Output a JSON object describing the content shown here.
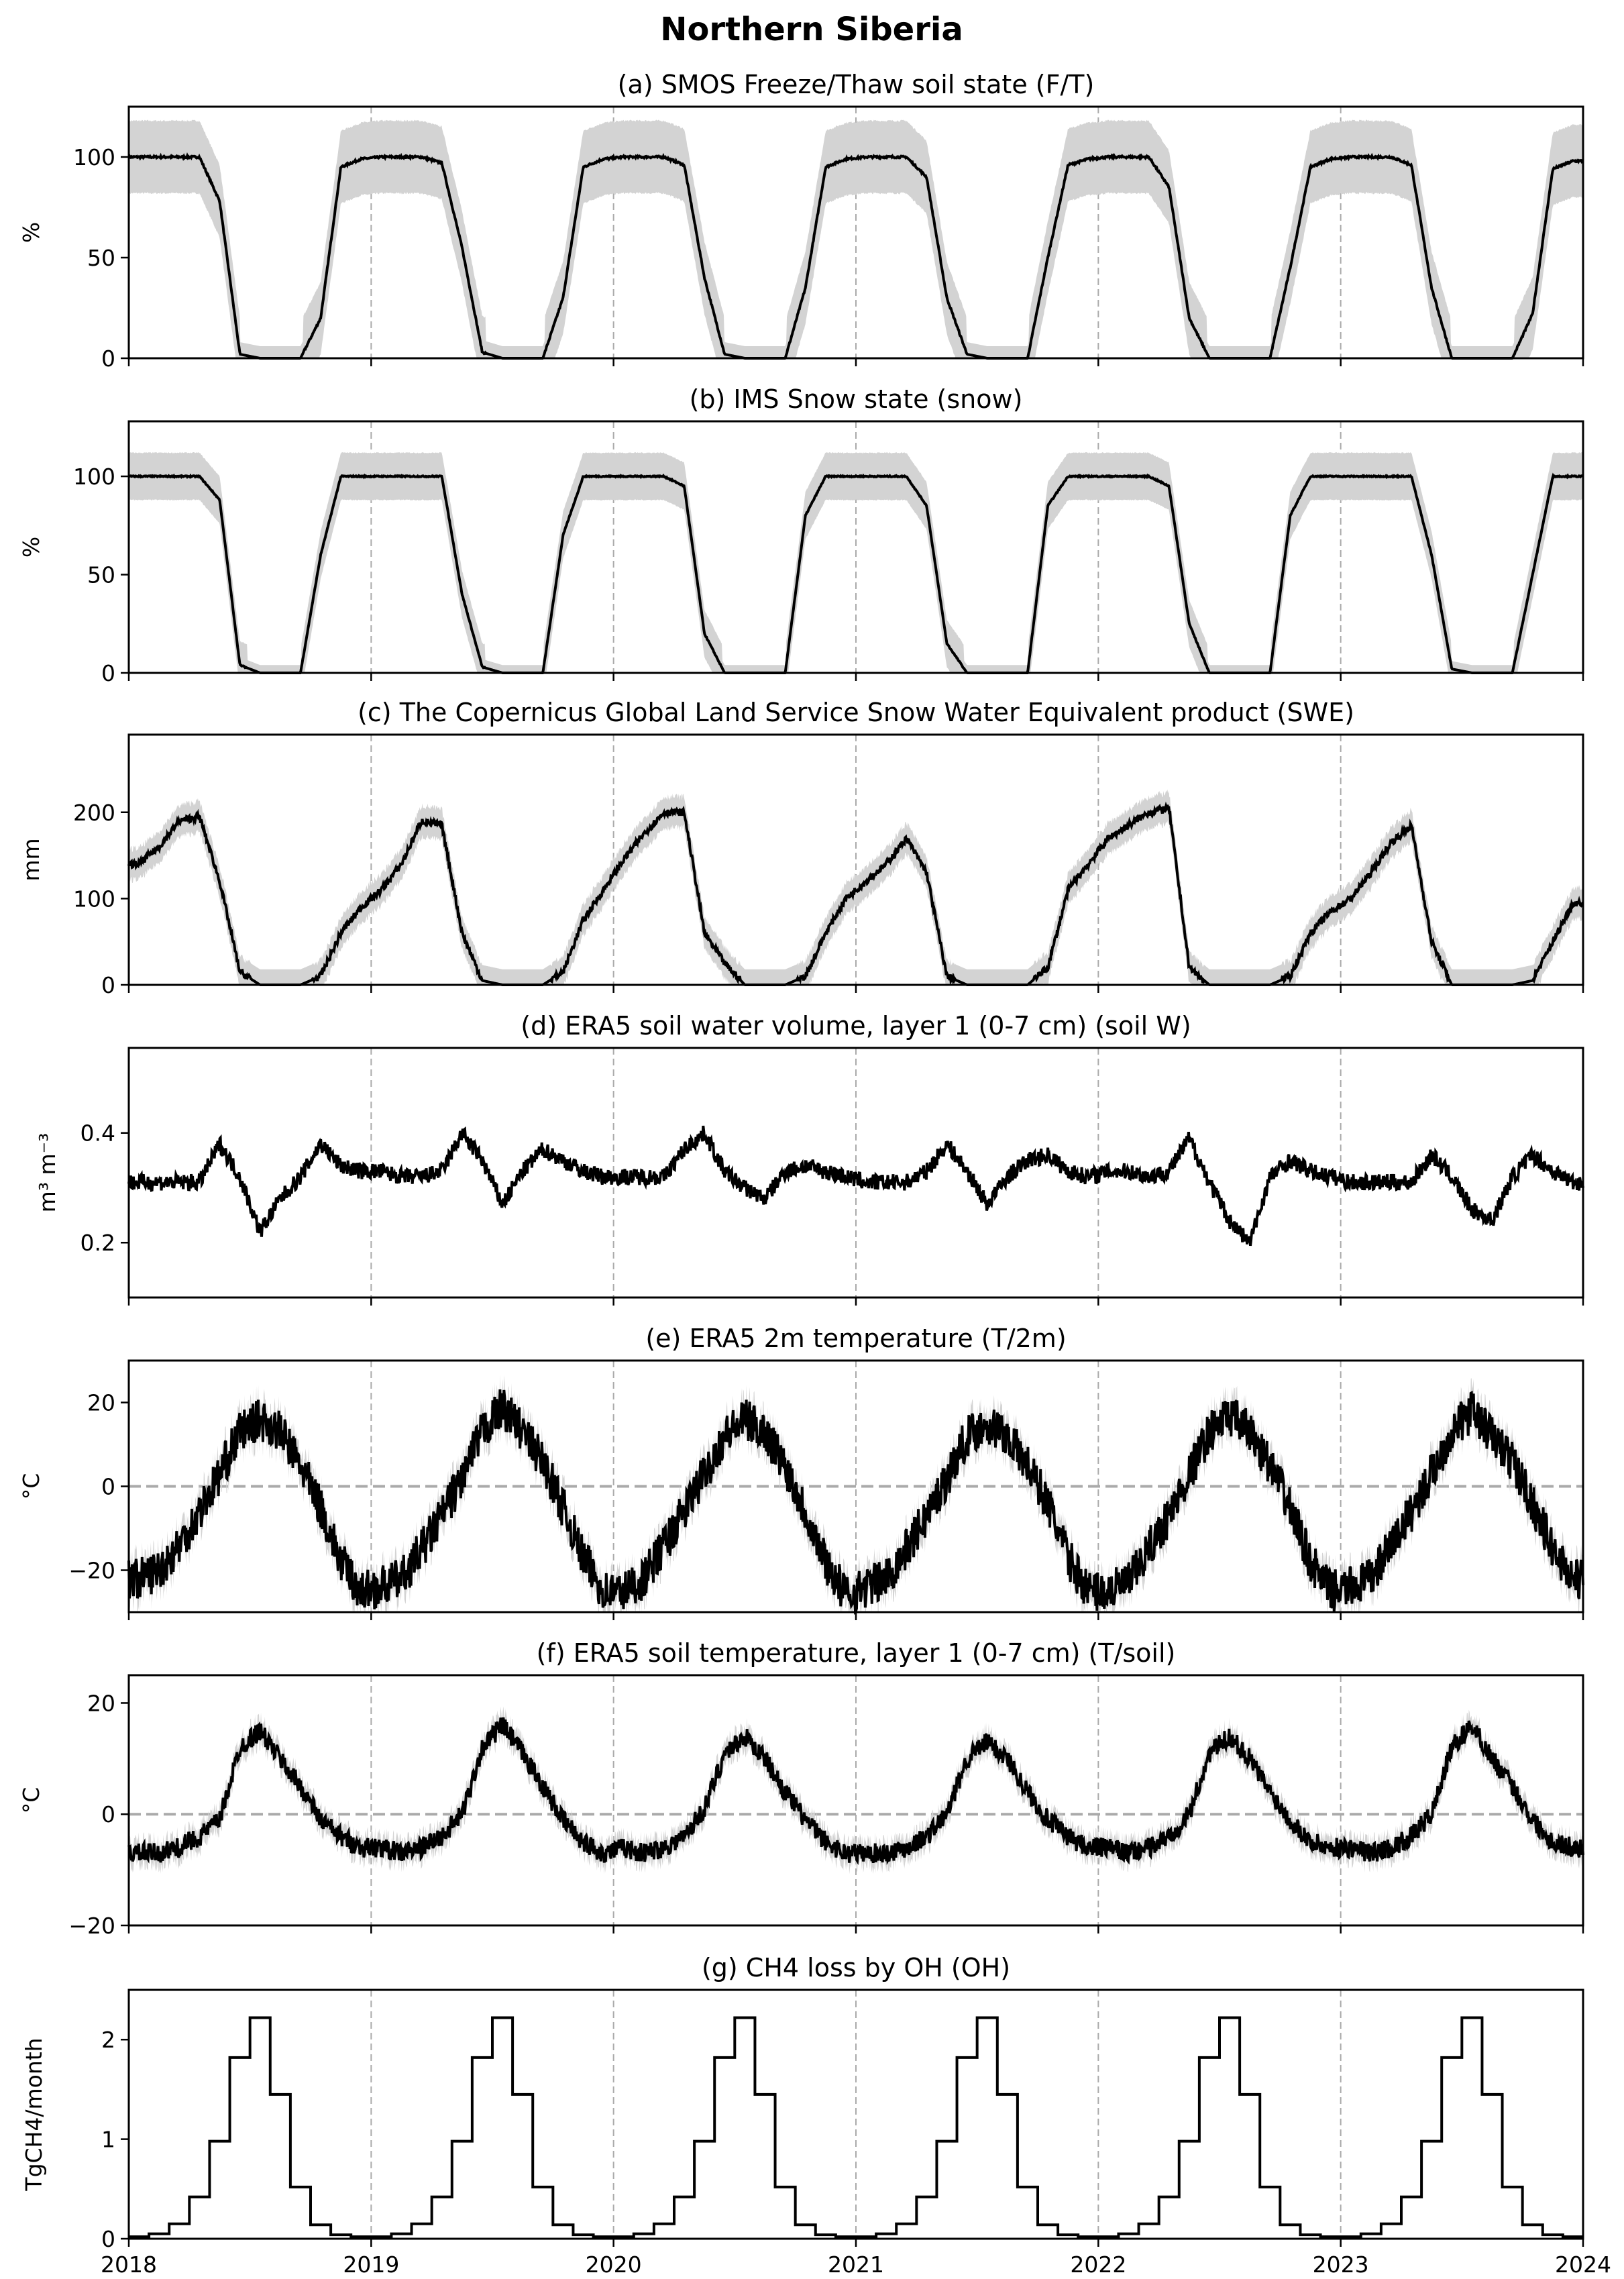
{
  "chart_data": {
    "title": "Northern Siberia",
    "x_range": [
      "2018-01-01",
      "2024-01-01"
    ],
    "x_tick_labels": [
      "2018",
      "2019",
      "2020",
      "2021",
      "2022",
      "2023",
      "2024"
    ],
    "year_gridlines": "dashed-gray",
    "sampling": "monthly",
    "panels": [
      {
        "type": "line",
        "title": "(a) SMOS Freeze/Thaw soil state (F/T)",
        "ylabel": "%",
        "ylim": [
          0,
          125
        ],
        "yticks": [
          0,
          50,
          100
        ],
        "band": true,
        "values": [
          100,
          100,
          100,
          100,
          78,
          2,
          0,
          0,
          0,
          20,
          95,
          99,
          100,
          100,
          100,
          97,
          55,
          3,
          0,
          0,
          0,
          30,
          95,
          99,
          100,
          100,
          100,
          96,
          40,
          2,
          0,
          0,
          0,
          35,
          95,
          99,
          100,
          100,
          100,
          90,
          30,
          2,
          0,
          0,
          0,
          50,
          96,
          99,
          100,
          100,
          100,
          85,
          20,
          0,
          0,
          0,
          0,
          45,
          95,
          99,
          100,
          100,
          100,
          96,
          35,
          0,
          0,
          0,
          0,
          22,
          94,
          98
        ]
      },
      {
        "type": "line",
        "title": "(b) IMS Snow state (snow)",
        "ylabel": "%",
        "ylim": [
          0,
          128
        ],
        "yticks": [
          0,
          50,
          100
        ],
        "band": true,
        "values": [
          100,
          100,
          100,
          100,
          88,
          4,
          0,
          0,
          0,
          60,
          100,
          100,
          100,
          100,
          100,
          100,
          40,
          3,
          0,
          0,
          0,
          70,
          100,
          100,
          100,
          100,
          100,
          95,
          20,
          0,
          0,
          0,
          0,
          80,
          100,
          100,
          100,
          100,
          100,
          85,
          15,
          0,
          0,
          0,
          0,
          85,
          100,
          100,
          100,
          100,
          100,
          95,
          25,
          0,
          0,
          0,
          0,
          80,
          100,
          100,
          100,
          100,
          100,
          100,
          60,
          2,
          0,
          0,
          0,
          50,
          100,
          100
        ]
      },
      {
        "type": "line",
        "title": "(c) The Copernicus Global Land Service Snow Water Equivalent product (SWE)",
        "ylabel": "mm",
        "ylim": [
          0,
          290
        ],
        "yticks": [
          0,
          100,
          200
        ],
        "band": true,
        "values": [
          140,
          160,
          190,
          195,
          120,
          15,
          0,
          0,
          0,
          10,
          60,
          90,
          110,
          140,
          190,
          185,
          60,
          5,
          0,
          0,
          0,
          15,
          75,
          110,
          145,
          175,
          200,
          200,
          60,
          25,
          0,
          0,
          0,
          10,
          60,
          100,
          120,
          140,
          170,
          130,
          10,
          0,
          0,
          0,
          0,
          20,
          110,
          140,
          170,
          185,
          200,
          205,
          20,
          0,
          0,
          0,
          0,
          10,
          60,
          85,
          100,
          130,
          165,
          185,
          50,
          0,
          0,
          0,
          0,
          5,
          50,
          95
        ]
      },
      {
        "type": "line",
        "title": "(d) ERA5 soil water volume, layer 1 (0-7 cm) (soil W)",
        "ylabel": "m³ m⁻³",
        "ylim": [
          0.1,
          0.555
        ],
        "yticks": [
          0.2,
          0.4
        ],
        "band": false,
        "values": [
          0.31,
          0.31,
          0.31,
          0.31,
          0.38,
          0.32,
          0.22,
          0.28,
          0.32,
          0.38,
          0.34,
          0.33,
          0.33,
          0.32,
          0.32,
          0.33,
          0.4,
          0.35,
          0.27,
          0.33,
          0.37,
          0.35,
          0.33,
          0.32,
          0.32,
          0.32,
          0.32,
          0.37,
          0.4,
          0.33,
          0.3,
          0.28,
          0.33,
          0.34,
          0.33,
          0.32,
          0.31,
          0.31,
          0.31,
          0.33,
          0.38,
          0.33,
          0.27,
          0.32,
          0.35,
          0.36,
          0.33,
          0.32,
          0.33,
          0.33,
          0.32,
          0.33,
          0.39,
          0.31,
          0.24,
          0.2,
          0.32,
          0.35,
          0.33,
          0.32,
          0.31,
          0.31,
          0.31,
          0.31,
          0.36,
          0.32,
          0.26,
          0.24,
          0.32,
          0.36,
          0.33,
          0.31
        ]
      },
      {
        "type": "line",
        "title": "(e) ERA5 2m temperature (T/2m)",
        "ylabel": "°C",
        "ylim": [
          -30,
          30
        ],
        "yticks": [
          -20,
          0,
          20
        ],
        "zero_line": true,
        "band": true,
        "values": [
          -22,
          -20,
          -14,
          -6,
          3,
          13,
          16,
          13,
          5,
          -5,
          -18,
          -25,
          -24,
          -22,
          -15,
          -7,
          2,
          13,
          19,
          13,
          6,
          -5,
          -17,
          -25,
          -25,
          -22,
          -14,
          -6,
          3,
          12,
          16,
          13,
          5,
          -6,
          -18,
          -26,
          -24,
          -22,
          -15,
          -7,
          2,
          12,
          15,
          12,
          5,
          -4,
          -17,
          -25,
          -25,
          -23,
          -15,
          -7,
          3,
          13,
          17,
          13,
          5,
          -5,
          -18,
          -25,
          -24,
          -22,
          -14,
          -6,
          3,
          13,
          18,
          12,
          6,
          -4,
          -15,
          -22
        ]
      },
      {
        "type": "line",
        "title": "(f) ERA5 soil temperature, layer 1 (0-7 cm) (T/soil)",
        "ylabel": "°C",
        "ylim": [
          -20,
          25
        ],
        "yticks": [
          -20,
          0,
          20
        ],
        "zero_line": true,
        "band": true,
        "values": [
          -7,
          -7,
          -6,
          -4,
          -1,
          12,
          15,
          10,
          5,
          -1,
          -4,
          -6,
          -6,
          -7,
          -6,
          -4,
          0,
          12,
          16,
          11,
          5,
          -1,
          -5,
          -7,
          -6,
          -7,
          -6,
          -4,
          1,
          11,
          14,
          10,
          4,
          -1,
          -5,
          -7,
          -7,
          -7,
          -6,
          -4,
          0,
          10,
          13,
          10,
          4,
          -1,
          -4,
          -6,
          -6,
          -7,
          -6,
          -4,
          0,
          11,
          14,
          10,
          4,
          -1,
          -5,
          -6,
          -6,
          -7,
          -6,
          -4,
          0,
          12,
          16,
          10,
          5,
          -1,
          -5,
          -6
        ]
      },
      {
        "type": "step",
        "title": "(g) CH4 loss by OH (OH)",
        "ylabel": "TgCH4/month",
        "ylim": [
          0,
          2.5
        ],
        "yticks": [
          0,
          1,
          2
        ],
        "band": false,
        "values": [
          0.02,
          0.05,
          0.15,
          0.42,
          0.98,
          1.82,
          2.22,
          1.45,
          0.52,
          0.14,
          0.04,
          0.02,
          0.02,
          0.05,
          0.15,
          0.42,
          0.98,
          1.82,
          2.22,
          1.45,
          0.52,
          0.14,
          0.04,
          0.02,
          0.02,
          0.05,
          0.15,
          0.42,
          0.98,
          1.82,
          2.22,
          1.45,
          0.52,
          0.14,
          0.04,
          0.02,
          0.02,
          0.05,
          0.15,
          0.42,
          0.98,
          1.82,
          2.22,
          1.45,
          0.52,
          0.14,
          0.04,
          0.02,
          0.02,
          0.05,
          0.15,
          0.42,
          0.98,
          1.82,
          2.22,
          1.45,
          0.52,
          0.14,
          0.04,
          0.02,
          0.02,
          0.05,
          0.15,
          0.42,
          0.98,
          1.82,
          2.22,
          1.45,
          0.52,
          0.14,
          0.04,
          0.02
        ]
      }
    ],
    "colors": {
      "line": "#000000",
      "band": "#d3d3d3",
      "gridline": "#aaaaaa"
    }
  }
}
